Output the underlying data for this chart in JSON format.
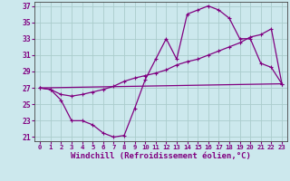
{
  "xlabel": "Windchill (Refroidissement éolien,°C)",
  "background_color": "#cce8ed",
  "grid_color": "#aacccc",
  "line_color": "#800080",
  "xlim": [
    -0.5,
    23.5
  ],
  "ylim": [
    20.5,
    37.5
  ],
  "yticks": [
    21,
    23,
    25,
    27,
    29,
    31,
    33,
    35,
    37
  ],
  "xticks": [
    0,
    1,
    2,
    3,
    4,
    5,
    6,
    7,
    8,
    9,
    10,
    11,
    12,
    13,
    14,
    15,
    16,
    17,
    18,
    19,
    20,
    21,
    22,
    23
  ],
  "line1_x": [
    0,
    1,
    2,
    3,
    4,
    5,
    6,
    7,
    8,
    9,
    10,
    11,
    12,
    13,
    14,
    15,
    16,
    17,
    18,
    19,
    20,
    21,
    22,
    23
  ],
  "line1_y": [
    27,
    26.8,
    25.5,
    23.0,
    23.0,
    22.5,
    21.5,
    21.0,
    21.2,
    24.5,
    28.0,
    30.5,
    33.0,
    30.5,
    36.0,
    36.5,
    37.0,
    36.5,
    35.5,
    33.0,
    33.0,
    30.0,
    29.5,
    27.5
  ],
  "line2_x": [
    0,
    1,
    2,
    3,
    4,
    5,
    6,
    7,
    8,
    9,
    10,
    11,
    12,
    13,
    14,
    15,
    16,
    17,
    18,
    19,
    20,
    21,
    22,
    23
  ],
  "line2_y": [
    27.0,
    26.8,
    26.2,
    26.0,
    26.2,
    26.5,
    26.8,
    27.2,
    27.8,
    28.2,
    28.5,
    28.8,
    29.2,
    29.8,
    30.2,
    30.5,
    31.0,
    31.5,
    32.0,
    32.5,
    33.2,
    33.5,
    34.2,
    27.5
  ],
  "line3_x": [
    0,
    23
  ],
  "line3_y": [
    27.0,
    27.5
  ],
  "xlabel_fontsize": 6.5,
  "tick_fontsize": 6,
  "markersize": 3.5,
  "linewidth": 0.9
}
